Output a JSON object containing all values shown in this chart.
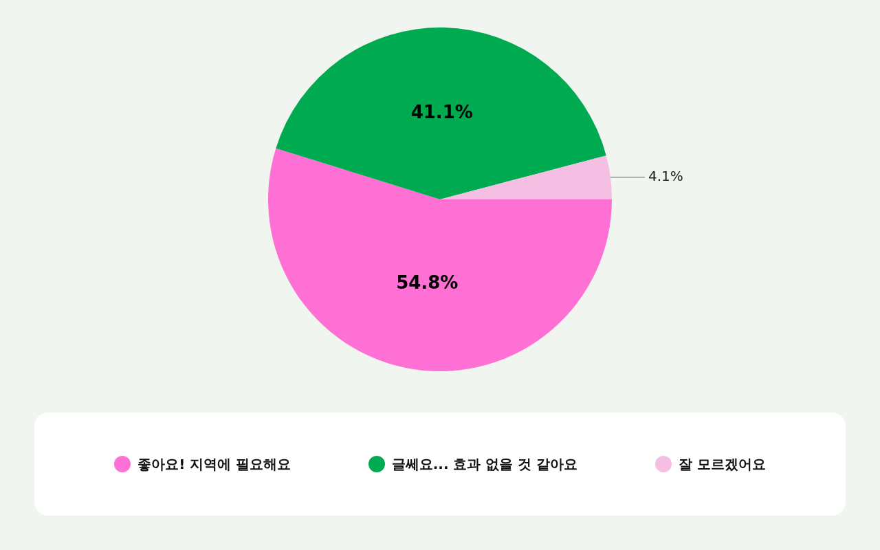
{
  "chart_data": {
    "type": "pie",
    "categories": [
      "좋아요! 지역에 필요해요",
      "글쎄요... 효과 없을 것 같아요",
      "잘 모르겠어요"
    ],
    "values": [
      54.8,
      41.1,
      4.1
    ],
    "colors": [
      "#ff70d4",
      "#00aa50",
      "#f5bee3"
    ],
    "value_labels": [
      "54.8%",
      "41.1%",
      "4.1%"
    ],
    "legend": "bottom"
  }
}
